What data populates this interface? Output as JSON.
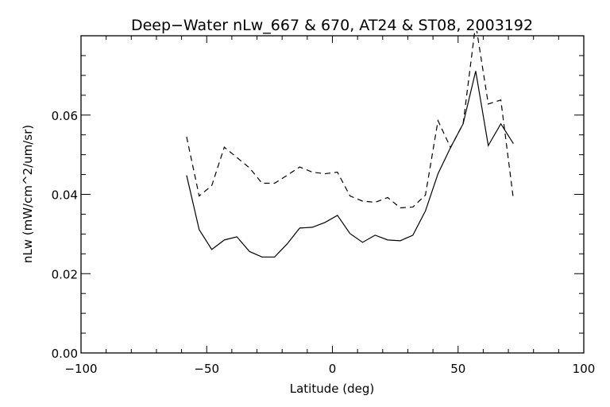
{
  "chart_data": {
    "type": "line",
    "title": "Deep−Water nLw_667 & 670, AT24 & ST08, 2003192",
    "xlabel": "Latitude (deg)",
    "ylabel": "nLw (mW/cm^2/um/sr)",
    "xlim": [
      -100,
      100
    ],
    "ylim": [
      0,
      0.08
    ],
    "xticks": [
      -100,
      -50,
      0,
      50,
      100
    ],
    "xtick_labels": [
      "−100",
      "−50",
      "0",
      "50",
      "100"
    ],
    "yticks": [
      0,
      0.02,
      0.04,
      0.06
    ],
    "ytick_labels": [
      "0.00",
      "0.02",
      "0.04",
      "0.06"
    ],
    "x_minor_step": 10,
    "y_minor_step": 0.005,
    "grid": false,
    "x": [
      -58,
      -53,
      -48,
      -43,
      -38,
      -33,
      -28,
      -23,
      -18,
      -13,
      -8,
      -3,
      2,
      7,
      12,
      17,
      22,
      27,
      32,
      37,
      42,
      47,
      52,
      57,
      62,
      67,
      72
    ],
    "series": [
      {
        "name": "solid",
        "style": "solid",
        "values": [
          0.0448,
          0.0311,
          0.0261,
          0.0285,
          0.0293,
          0.0256,
          0.0242,
          0.0242,
          0.0275,
          0.0315,
          0.0317,
          0.0329,
          0.0347,
          0.0301,
          0.0279,
          0.0297,
          0.0285,
          0.0283,
          0.0297,
          0.0358,
          0.0452,
          0.0518,
          0.0578,
          0.0711,
          0.0523,
          0.0578,
          0.0528
        ]
      },
      {
        "name": "dashed",
        "style": "dashed",
        "values": [
          0.0545,
          0.0396,
          0.0422,
          0.0519,
          0.0493,
          0.0467,
          0.0428,
          0.0428,
          0.0448,
          0.0469,
          0.0456,
          0.0452,
          0.0456,
          0.0396,
          0.0383,
          0.038,
          0.0392,
          0.0366,
          0.0368,
          0.0398,
          0.0586,
          0.0518,
          0.0578,
          0.083,
          0.0628,
          0.0638,
          0.0388
        ]
      }
    ]
  }
}
